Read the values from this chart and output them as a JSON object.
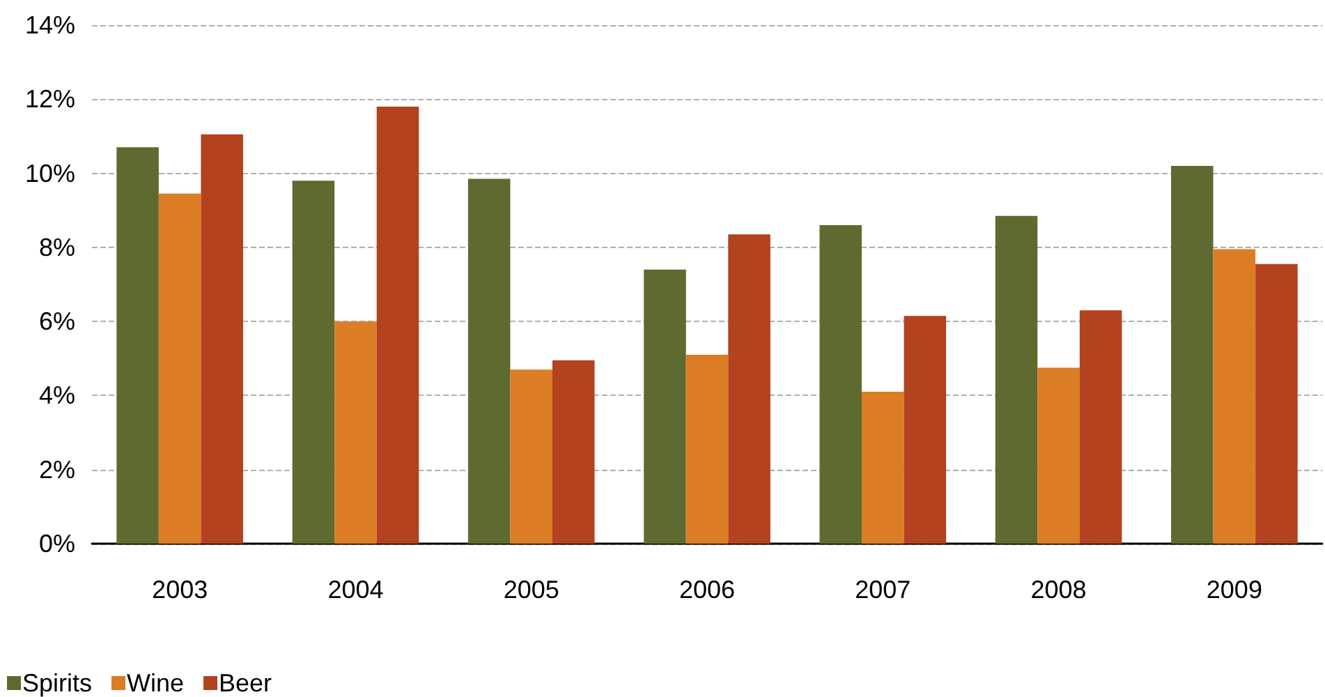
{
  "chart_data": {
    "type": "bar",
    "categories": [
      "2003",
      "2004",
      "2005",
      "2006",
      "2007",
      "2008",
      "2009"
    ],
    "series": [
      {
        "name": "Spirits",
        "color": "#5f6a31",
        "values": [
          10.7,
          9.8,
          9.85,
          7.4,
          8.6,
          8.85,
          10.2
        ]
      },
      {
        "name": "Wine",
        "color": "#dc7d25",
        "values": [
          9.45,
          6.0,
          4.7,
          5.1,
          4.1,
          4.75,
          7.95
        ]
      },
      {
        "name": "Beer",
        "color": "#b3421f",
        "values": [
          11.05,
          11.8,
          4.95,
          8.35,
          6.15,
          6.3,
          7.55
        ]
      }
    ],
    "ylim": [
      0,
      14
    ],
    "yticks": [
      {
        "value": 0,
        "label": "0%"
      },
      {
        "value": 2,
        "label": "2%"
      },
      {
        "value": 4,
        "label": "4%"
      },
      {
        "value": 6,
        "label": "6%"
      },
      {
        "value": 8,
        "label": "8%"
      },
      {
        "value": 10,
        "label": "10%"
      },
      {
        "value": 12,
        "label": "12%"
      },
      {
        "value": 14,
        "label": "14%"
      }
    ],
    "grid": "y",
    "legend": "bottom left"
  }
}
